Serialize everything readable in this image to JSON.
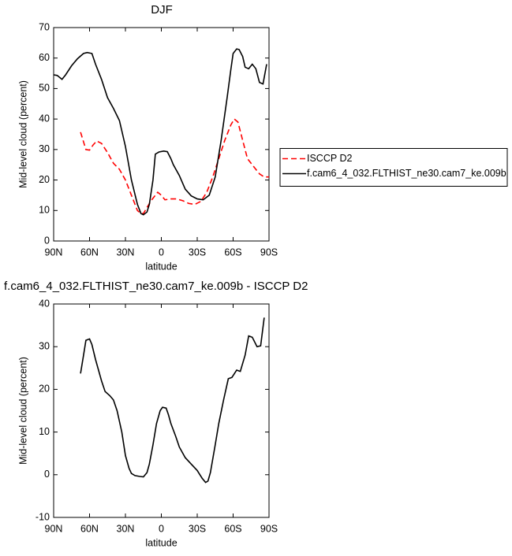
{
  "chart_data": [
    {
      "type": "line",
      "title": "DJF",
      "y_label": "Mid-level cloud (percent)",
      "x_label": "latitude",
      "xlim": [
        90,
        -90
      ],
      "xticks": [
        {
          "value": 90,
          "label": "90N"
        },
        {
          "value": 60,
          "label": "60N"
        },
        {
          "value": 30,
          "label": "30N"
        },
        0,
        {
          "value": -30,
          "label": "30S"
        },
        {
          "value": -60,
          "label": "60S"
        },
        {
          "value": -90,
          "label": "90S"
        }
      ],
      "ylim": [
        0,
        70
      ],
      "yticks": [
        0,
        10,
        20,
        30,
        40,
        50,
        60,
        70
      ],
      "legend": "right",
      "series": [
        {
          "name": "ISCCP D2",
          "color": "#ff0000",
          "dashed": true,
          "x": [
            67.5,
            63,
            60,
            57,
            54,
            50,
            45,
            40,
            35,
            30,
            25,
            20,
            17,
            15,
            12,
            8,
            3,
            0,
            -3,
            -8,
            -13,
            -18,
            -23,
            -28,
            -33,
            -38,
            -43,
            -48,
            -53,
            -58,
            -61,
            -64,
            -68,
            -72,
            -77,
            -82,
            -86,
            -90
          ],
          "values": [
            35.7,
            30,
            29.8,
            31.5,
            32.8,
            32,
            29,
            25.5,
            23.5,
            20,
            15,
            10,
            9,
            9,
            11,
            13.5,
            16,
            15,
            13.5,
            13.8,
            13.8,
            13.2,
            12.3,
            12,
            13,
            16,
            21,
            27,
            33,
            38,
            40,
            39,
            33,
            27,
            24.5,
            22,
            21,
            21
          ]
        },
        {
          "name": "f.cam6_4_032.FLTHIST_ne30.cam7_ke.009b",
          "color": "#000000",
          "dashed": false,
          "x": [
            90,
            87,
            83,
            80,
            75,
            70,
            65,
            62,
            58,
            55,
            50,
            45,
            40,
            35,
            30,
            25,
            20,
            17,
            15,
            12,
            10,
            7,
            5,
            2,
            -2,
            -5,
            -8,
            -10,
            -15,
            -20,
            -25,
            -30,
            -35,
            -40,
            -45,
            -50,
            -55,
            -58,
            -60,
            -63,
            -65,
            -68,
            -70,
            -73,
            -76,
            -79,
            -82,
            -85,
            -88
          ],
          "values": [
            54.5,
            54.3,
            53,
            54.5,
            57.5,
            59.8,
            61.5,
            61.8,
            61.5,
            58,
            53,
            47,
            43.5,
            39.5,
            31,
            20,
            12,
            9,
            8.6,
            9.5,
            12,
            20,
            28.5,
            29.2,
            29.5,
            29.3,
            27,
            25,
            21.5,
            17,
            14.8,
            13.8,
            13.5,
            15,
            21,
            33,
            47,
            56,
            61.5,
            63,
            62.8,
            60.5,
            57,
            56.5,
            58,
            56.5,
            52,
            51.5,
            58
          ]
        }
      ]
    },
    {
      "type": "line",
      "title": "f.cam6_4_032.FLTHIST_ne30.cam7_ke.009b - ISCCP D2",
      "y_label": "Mid-level cloud (percent)",
      "x_label": "latitude",
      "xlim": [
        90,
        -90
      ],
      "xticks": [
        {
          "value": 90,
          "label": "90N"
        },
        {
          "value": 60,
          "label": "60N"
        },
        {
          "value": 30,
          "label": "30N"
        },
        0,
        {
          "value": -30,
          "label": "30S"
        },
        {
          "value": -60,
          "label": "60S"
        },
        {
          "value": -90,
          "label": "90S"
        }
      ],
      "ylim": [
        -10,
        40
      ],
      "yticks": [
        -10,
        0,
        10,
        20,
        30,
        40
      ],
      "series": [
        {
          "color": "#000000",
          "dashed": false,
          "x": [
            67.5,
            65,
            63,
            60,
            58,
            55,
            50,
            47,
            43,
            40,
            37,
            33,
            30,
            27,
            25,
            22,
            18,
            15,
            12,
            10,
            7,
            4,
            1,
            -1,
            -4,
            -6,
            -8,
            -12,
            -15,
            -20,
            -25,
            -30,
            -34,
            -37,
            -39,
            -41,
            -45,
            -48,
            -52,
            -56,
            -59,
            -63,
            -66,
            -70,
            -73,
            -76,
            -80,
            -83,
            -86
          ],
          "values": [
            23.7,
            28,
            31.5,
            31.8,
            30.5,
            27,
            22,
            19.5,
            18.5,
            17.5,
            15,
            10,
            4.5,
            1.5,
            0.3,
            -0.2,
            -0.4,
            -0.5,
            0.5,
            2.5,
            7,
            12,
            15,
            15.8,
            15.6,
            14,
            12,
            9,
            6.5,
            4,
            2.5,
            1,
            -0.8,
            -1.8,
            -1.5,
            0.5,
            7,
            12,
            17.5,
            22.5,
            22.8,
            24.5,
            24.2,
            28,
            32.5,
            32.2,
            30,
            30.2,
            36.8
          ]
        }
      ]
    }
  ]
}
